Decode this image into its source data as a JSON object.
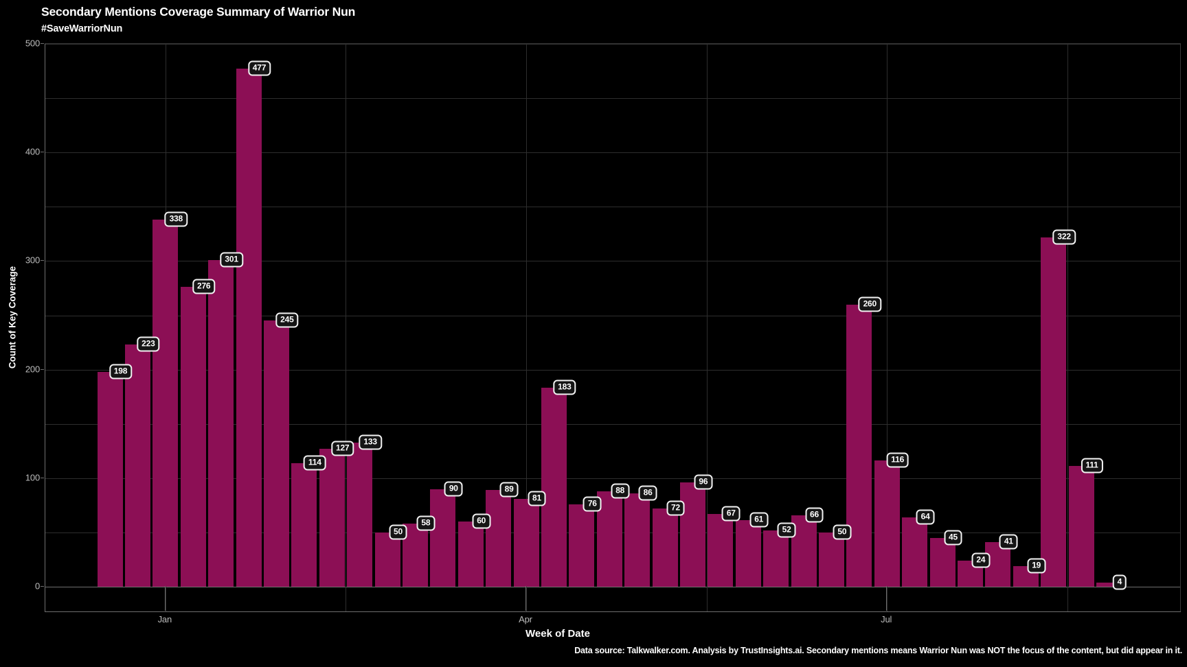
{
  "footer": "Data source: Talkwalker.com. Analysis by TrustInsights.ai. Secondary mentions means Warrior Nun was NOT the focus of the content, but did appear in it.",
  "chart_data": {
    "type": "bar",
    "title": "Secondary Mentions Coverage Summary of Warrior Nun",
    "subtitle": "#SaveWarriorNun",
    "xlabel": "Week of Date",
    "ylabel": "Count of Key Coverage",
    "x_unit": "week",
    "ylim": [
      0,
      500
    ],
    "y_ticks": [
      0,
      100,
      200,
      300,
      400,
      500
    ],
    "minor_gridline_step": 50,
    "grid": "on",
    "legend": "none",
    "background_color": "#000000",
    "bar_color": "#8C0F55",
    "label_badge": {
      "bg": "#151515",
      "border": "#F2F2F2",
      "text": "#FFFFFF"
    },
    "values": [
      198,
      223,
      338,
      276,
      301,
      477,
      245,
      114,
      127,
      133,
      50,
      58,
      90,
      60,
      89,
      81,
      183,
      76,
      88,
      86,
      72,
      96,
      67,
      61,
      52,
      66,
      50,
      260,
      116,
      64,
      45,
      24,
      41,
      19,
      322,
      111,
      4
    ],
    "month_ticks": [
      {
        "label": "Jan",
        "week_index": 2
      },
      {
        "label": "Apr",
        "week_index": 15
      },
      {
        "label": "Jul",
        "week_index": 28
      }
    ]
  }
}
